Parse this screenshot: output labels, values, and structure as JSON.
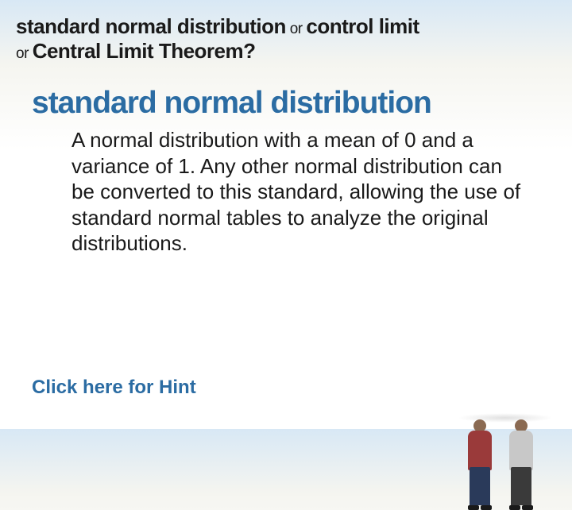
{
  "header": {
    "option1": "standard normal distribution",
    "or1": " or ",
    "option2": "control limit",
    "or2": "or ",
    "option3": "Central Limit Theorem?"
  },
  "term": {
    "title": "standard normal distribution",
    "definition": "A normal distribution with a mean of 0 and a variance of 1. Any other normal distribution can be converted to this standard, allowing the use of standard normal tables to analyze the original distributions."
  },
  "hint_label": "Click here for Hint",
  "colors": {
    "accent": "#2b6ca3",
    "text": "#1a1a1a",
    "bg_top": "#d8e8f5",
    "bg_bottom": "#ffffff"
  }
}
